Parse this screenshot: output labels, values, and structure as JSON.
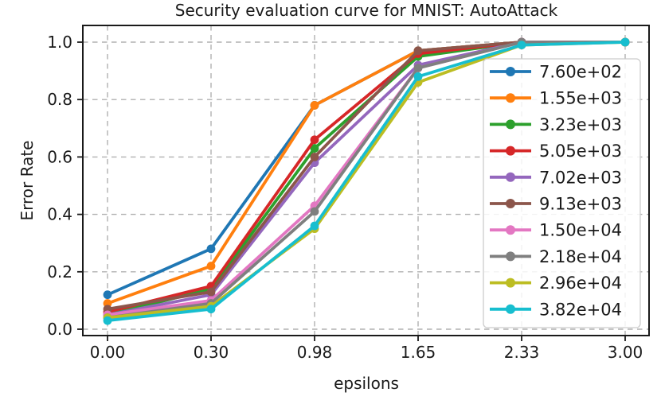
{
  "chart_data": {
    "type": "line",
    "title": "Security evaluation curve for MNIST: AutoAttack",
    "xlabel": "epsilons",
    "ylabel": "Error Rate",
    "x_tick_labels": [
      "0.00",
      "0.30",
      "0.98",
      "1.65",
      "2.33",
      "3.00"
    ],
    "y_tick_labels": [
      "0.0",
      "0.2",
      "0.4",
      "0.6",
      "0.8",
      "1.0"
    ],
    "x_values": [
      0.0,
      0.3,
      0.98,
      1.65,
      2.33,
      3.0
    ],
    "ylim": [
      -0.02,
      1.06
    ],
    "grid": "dashed-both-axes",
    "marker": "circle",
    "legend_position": "center-right",
    "series": [
      {
        "name": "7.60e+02",
        "color": "#1f77b4",
        "values": [
          0.12,
          0.28,
          0.78,
          0.97,
          1.0,
          1.0
        ]
      },
      {
        "name": "1.55e+03",
        "color": "#ff7f0e",
        "values": [
          0.09,
          0.22,
          0.78,
          0.97,
          1.0,
          1.0
        ]
      },
      {
        "name": "3.23e+03",
        "color": "#2ca02c",
        "values": [
          0.05,
          0.14,
          0.63,
          0.95,
          1.0,
          1.0
        ]
      },
      {
        "name": "5.05e+03",
        "color": "#d62728",
        "values": [
          0.06,
          0.15,
          0.66,
          0.96,
          1.0,
          1.0
        ]
      },
      {
        "name": "7.02e+03",
        "color": "#9467bd",
        "values": [
          0.05,
          0.12,
          0.58,
          0.92,
          1.0,
          1.0
        ]
      },
      {
        "name": "9.13e+03",
        "color": "#8c564b",
        "values": [
          0.07,
          0.13,
          0.6,
          0.97,
          1.0,
          1.0
        ]
      },
      {
        "name": "1.50e+04",
        "color": "#e377c2",
        "values": [
          0.05,
          0.1,
          0.43,
          0.91,
          1.0,
          1.0
        ]
      },
      {
        "name": "2.18e+04",
        "color": "#7f7f7f",
        "values": [
          0.04,
          0.09,
          0.41,
          0.91,
          1.0,
          1.0
        ]
      },
      {
        "name": "2.96e+04",
        "color": "#bcbd22",
        "values": [
          0.04,
          0.08,
          0.35,
          0.86,
          0.99,
          1.0
        ]
      },
      {
        "name": "3.82e+04",
        "color": "#17becf",
        "values": [
          0.03,
          0.07,
          0.36,
          0.88,
          0.99,
          1.0
        ]
      }
    ]
  },
  "style": {
    "background": "#ffffff",
    "grid_color": "#b0b0b0",
    "spine_color": "#1a1a1a",
    "text_color": "#1a1a1a",
    "legend_border_color": "#cccccc"
  }
}
